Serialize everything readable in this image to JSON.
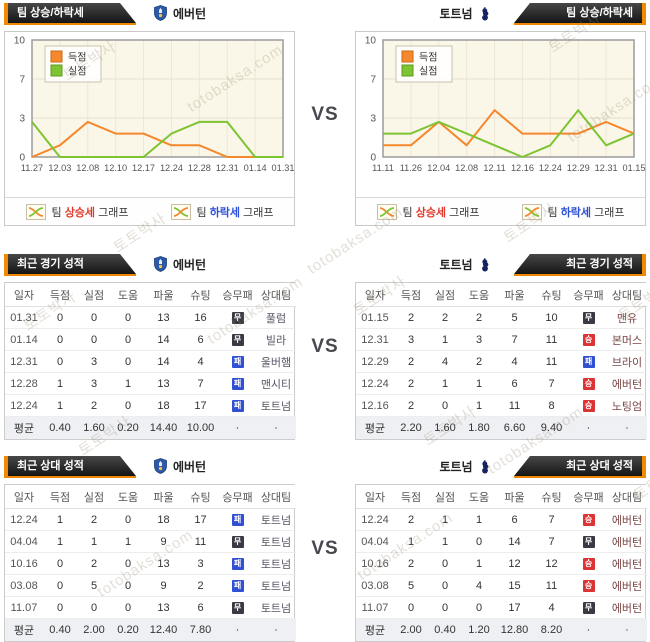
{
  "page": {
    "vs": "VS"
  },
  "watermark": {
    "kr": "토토박사",
    "en": "totobaksa.com"
  },
  "teams": {
    "left": {
      "name": "에버턴"
    },
    "right": {
      "name": "토트넘"
    }
  },
  "badge_labels": {
    "win": "승",
    "draw": "무",
    "loss": "패"
  },
  "colors": {
    "accent_orange": "#ef8800",
    "score_line": "#f5872c",
    "concede_line": "#7dc433",
    "win_badge": "#dc3434",
    "draw_badge": "#3a3a44",
    "loss_badge": "#3150d4",
    "rise_text": "#e23b2e",
    "fall_text": "#2b50d9"
  },
  "trend": {
    "banner": "팀 상승/하락세",
    "legend": {
      "rise": {
        "pre": "팀",
        "key": "상승세",
        "post": "그래프"
      },
      "fall": {
        "pre": "팀",
        "key": "하락세",
        "post": "그래프"
      }
    }
  },
  "chart_data": [
    {
      "type": "line",
      "title": "에버턴 팀 상승/하락세",
      "x": [
        "11.27",
        "12.03",
        "12.08",
        "12.10",
        "12.17",
        "12.24",
        "12.28",
        "12.31",
        "01.14",
        "01.31"
      ],
      "series": [
        {
          "name": "득점",
          "color": "#f5872c",
          "border": "#c96a10",
          "values": [
            0,
            1,
            3,
            2,
            2,
            1,
            1,
            0,
            0,
            0
          ]
        },
        {
          "name": "실점",
          "color": "#7dc433",
          "border": "#5d9d1d",
          "values": [
            3,
            0,
            0,
            0,
            0,
            2,
            3,
            3,
            0,
            0
          ]
        }
      ],
      "ylim": [
        0,
        10
      ],
      "yticks": [
        0,
        3,
        7,
        10
      ],
      "grid": true,
      "legend_position": "top-left"
    },
    {
      "type": "line",
      "title": "토트넘 팀 상승/하락세",
      "x": [
        "11.11",
        "11.26",
        "12.04",
        "12.08",
        "12.11",
        "12.16",
        "12.24",
        "12.29",
        "12.31",
        "01.15"
      ],
      "series": [
        {
          "name": "득점",
          "color": "#f5872c",
          "border": "#c96a10",
          "values": [
            1,
            1,
            3,
            1,
            4,
            2,
            2,
            2,
            3,
            2
          ]
        },
        {
          "name": "실점",
          "color": "#7dc433",
          "border": "#5d9d1d",
          "values": [
            2,
            2,
            3,
            2,
            1,
            0,
            1,
            4,
            1,
            2
          ]
        }
      ],
      "ylim": [
        0,
        10
      ],
      "yticks": [
        0,
        3,
        7,
        10
      ],
      "grid": true,
      "legend_position": "top-left"
    }
  ],
  "tables": {
    "columns": [
      "일자",
      "득점",
      "실점",
      "도움",
      "파울",
      "슈팅",
      "승무패",
      "상대팀"
    ],
    "avg_label": "평균",
    "dot": "·",
    "recent": {
      "banner": "최근 경기 성적",
      "left": {
        "rows": [
          [
            "01.31",
            "0",
            "0",
            "0",
            "13",
            "16",
            "draw",
            "풀럼"
          ],
          [
            "01.14",
            "0",
            "0",
            "0",
            "14",
            "6",
            "draw",
            "빌라"
          ],
          [
            "12.31",
            "0",
            "3",
            "0",
            "14",
            "4",
            "loss",
            "울버햄"
          ],
          [
            "12.28",
            "1",
            "3",
            "1",
            "13",
            "7",
            "loss",
            "맨시티"
          ],
          [
            "12.24",
            "1",
            "2",
            "0",
            "18",
            "17",
            "loss",
            "토트넘"
          ]
        ],
        "avg": [
          "0.40",
          "1.60",
          "0.20",
          "14.40",
          "10.00"
        ]
      },
      "right": {
        "rows": [
          [
            "01.15",
            "2",
            "2",
            "2",
            "5",
            "10",
            "draw",
            "맨유"
          ],
          [
            "12.31",
            "3",
            "1",
            "3",
            "7",
            "11",
            "win",
            "본머스"
          ],
          [
            "12.29",
            "2",
            "4",
            "2",
            "4",
            "11",
            "loss",
            "브라이"
          ],
          [
            "12.24",
            "2",
            "1",
            "1",
            "6",
            "7",
            "win",
            "에버턴"
          ],
          [
            "12.16",
            "2",
            "0",
            "1",
            "11",
            "8",
            "win",
            "노팅엄"
          ]
        ],
        "avg": [
          "2.20",
          "1.60",
          "1.80",
          "6.60",
          "9.40"
        ]
      }
    },
    "h2h": {
      "banner": "최근 상대 성적",
      "left": {
        "rows": [
          [
            "12.24",
            "1",
            "2",
            "0",
            "18",
            "17",
            "loss",
            "토트넘"
          ],
          [
            "04.04",
            "1",
            "1",
            "1",
            "9",
            "11",
            "draw",
            "토트넘"
          ],
          [
            "10.16",
            "0",
            "2",
            "0",
            "13",
            "3",
            "loss",
            "토트넘"
          ],
          [
            "03.08",
            "0",
            "5",
            "0",
            "9",
            "2",
            "loss",
            "토트넘"
          ],
          [
            "11.07",
            "0",
            "0",
            "0",
            "13",
            "6",
            "draw",
            "토트넘"
          ]
        ],
        "avg": [
          "0.40",
          "2.00",
          "0.20",
          "12.40",
          "7.80"
        ]
      },
      "right": {
        "rows": [
          [
            "12.24",
            "2",
            "1",
            "1",
            "6",
            "7",
            "win",
            "에버턴"
          ],
          [
            "04.04",
            "1",
            "1",
            "0",
            "14",
            "7",
            "draw",
            "에버턴"
          ],
          [
            "10.16",
            "2",
            "0",
            "1",
            "12",
            "12",
            "win",
            "에버턴"
          ],
          [
            "03.08",
            "5",
            "0",
            "4",
            "15",
            "11",
            "win",
            "에버턴"
          ],
          [
            "11.07",
            "0",
            "0",
            "0",
            "17",
            "4",
            "draw",
            "에버턴"
          ]
        ],
        "avg": [
          "2.00",
          "0.40",
          "1.20",
          "12.80",
          "8.20"
        ]
      }
    }
  }
}
